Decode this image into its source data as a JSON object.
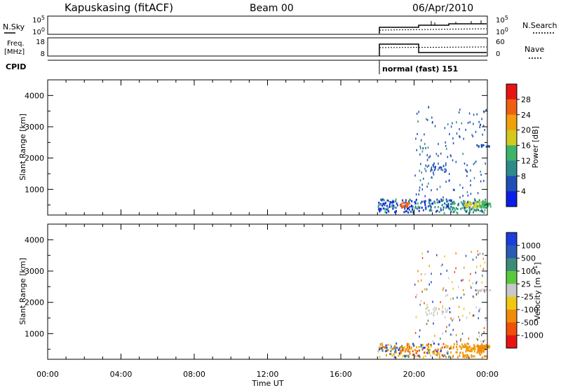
{
  "header": {
    "title": "Kapuskasing (fitACF)",
    "beam": "Beam 00",
    "date": "06/Apr/2010"
  },
  "small_panels": {
    "nsky": {
      "label": "N.Sky",
      "ticks": [
        "10^5",
        "10^0"
      ],
      "right_label": "N.Search",
      "right_ticks": [
        "10^5",
        "10^0"
      ]
    },
    "freq": {
      "label_line1": "Freq.",
      "label_line2": "[MHz]",
      "ticks": [
        "18",
        "8"
      ],
      "right_label": "Nave",
      "right_ticks": [
        "60",
        "0"
      ]
    },
    "cpid": {
      "label": "CPID",
      "mode_text": "normal (fast) 151"
    }
  },
  "x_axis": {
    "label": "Time UT",
    "ticks": [
      "00:00",
      "04:00",
      "08:00",
      "12:00",
      "16:00",
      "20:00",
      "00:00"
    ]
  },
  "chart_data": [
    {
      "type": "heatmap",
      "name": "power-panel",
      "ylabel": "Slant Range [km]",
      "xlim": [
        0,
        24
      ],
      "ylim": [
        180,
        4500
      ],
      "yticks": [
        "1000",
        "2000",
        "3000",
        "4000"
      ],
      "ytick_values": [
        1000,
        2000,
        3000,
        4000
      ],
      "colorbar": {
        "label": "Power [dB]",
        "ticks": [
          "4",
          "8",
          "12",
          "16",
          "20",
          "24",
          "28"
        ],
        "colors": [
          "#0a1ee6",
          "#1e4fb4",
          "#2e8a8a",
          "#3cb46a",
          "#d4c81e",
          "#f0a00a",
          "#f06014",
          "#e61414"
        ]
      },
      "data_start_hour": 18,
      "data_end_hour": 24
    },
    {
      "type": "heatmap",
      "name": "velocity-panel",
      "ylabel": "Slant Range [km]",
      "xlim": [
        0,
        24
      ],
      "ylim": [
        180,
        4500
      ],
      "yticks": [
        "1000",
        "2000",
        "3000",
        "4000"
      ],
      "ytick_values": [
        1000,
        2000,
        3000,
        4000
      ],
      "colorbar": {
        "label": "Velocity [m s^-1]",
        "ticks": [
          "1000",
          "500",
          "100",
          "25",
          "-25",
          "-100",
          "-500",
          "-1000"
        ],
        "colors": [
          "#1e3cdc",
          "#2a5ab4",
          "#3c8c78",
          "#5ac83c",
          "#c8c8c8",
          "#f0c814",
          "#f08c0a",
          "#f0500a",
          "#e61414"
        ]
      },
      "data_start_hour": 18,
      "data_end_hour": 24
    }
  ]
}
